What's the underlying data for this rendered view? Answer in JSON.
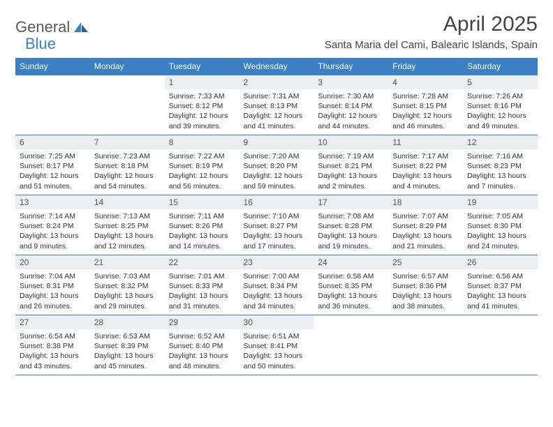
{
  "logo": {
    "part1": "General",
    "part2": "Blue"
  },
  "title": "April 2025",
  "location": "Santa Maria del Cami, Balearic Islands, Spain",
  "colors": {
    "header_bg": "#3b7fc4",
    "header_text": "#ffffff",
    "daynum_bg": "#eceff1",
    "border": "#3b7fc4",
    "body_text": "#333333",
    "logo_gray": "#5a5a5a",
    "logo_blue": "#3b7fc4"
  },
  "dayHeaders": [
    "Sunday",
    "Monday",
    "Tuesday",
    "Wednesday",
    "Thursday",
    "Friday",
    "Saturday"
  ],
  "weeks": [
    [
      null,
      null,
      {
        "n": "1",
        "sr": "7:33 AM",
        "ss": "8:12 PM",
        "dl": "12 hours and 39 minutes."
      },
      {
        "n": "2",
        "sr": "7:31 AM",
        "ss": "8:13 PM",
        "dl": "12 hours and 41 minutes."
      },
      {
        "n": "3",
        "sr": "7:30 AM",
        "ss": "8:14 PM",
        "dl": "12 hours and 44 minutes."
      },
      {
        "n": "4",
        "sr": "7:28 AM",
        "ss": "8:15 PM",
        "dl": "12 hours and 46 minutes."
      },
      {
        "n": "5",
        "sr": "7:26 AM",
        "ss": "8:16 PM",
        "dl": "12 hours and 49 minutes."
      }
    ],
    [
      {
        "n": "6",
        "sr": "7:25 AM",
        "ss": "8:17 PM",
        "dl": "12 hours and 51 minutes."
      },
      {
        "n": "7",
        "sr": "7:23 AM",
        "ss": "8:18 PM",
        "dl": "12 hours and 54 minutes."
      },
      {
        "n": "8",
        "sr": "7:22 AM",
        "ss": "8:19 PM",
        "dl": "12 hours and 56 minutes."
      },
      {
        "n": "9",
        "sr": "7:20 AM",
        "ss": "8:20 PM",
        "dl": "12 hours and 59 minutes."
      },
      {
        "n": "10",
        "sr": "7:19 AM",
        "ss": "8:21 PM",
        "dl": "13 hours and 2 minutes."
      },
      {
        "n": "11",
        "sr": "7:17 AM",
        "ss": "8:22 PM",
        "dl": "13 hours and 4 minutes."
      },
      {
        "n": "12",
        "sr": "7:16 AM",
        "ss": "8:23 PM",
        "dl": "13 hours and 7 minutes."
      }
    ],
    [
      {
        "n": "13",
        "sr": "7:14 AM",
        "ss": "8:24 PM",
        "dl": "13 hours and 9 minutes."
      },
      {
        "n": "14",
        "sr": "7:13 AM",
        "ss": "8:25 PM",
        "dl": "13 hours and 12 minutes."
      },
      {
        "n": "15",
        "sr": "7:11 AM",
        "ss": "8:26 PM",
        "dl": "13 hours and 14 minutes."
      },
      {
        "n": "16",
        "sr": "7:10 AM",
        "ss": "8:27 PM",
        "dl": "13 hours and 17 minutes."
      },
      {
        "n": "17",
        "sr": "7:08 AM",
        "ss": "8:28 PM",
        "dl": "13 hours and 19 minutes."
      },
      {
        "n": "18",
        "sr": "7:07 AM",
        "ss": "8:29 PM",
        "dl": "13 hours and 21 minutes."
      },
      {
        "n": "19",
        "sr": "7:05 AM",
        "ss": "8:30 PM",
        "dl": "13 hours and 24 minutes."
      }
    ],
    [
      {
        "n": "20",
        "sr": "7:04 AM",
        "ss": "8:31 PM",
        "dl": "13 hours and 26 minutes."
      },
      {
        "n": "21",
        "sr": "7:03 AM",
        "ss": "8:32 PM",
        "dl": "13 hours and 29 minutes."
      },
      {
        "n": "22",
        "sr": "7:01 AM",
        "ss": "8:33 PM",
        "dl": "13 hours and 31 minutes."
      },
      {
        "n": "23",
        "sr": "7:00 AM",
        "ss": "8:34 PM",
        "dl": "13 hours and 34 minutes."
      },
      {
        "n": "24",
        "sr": "6:58 AM",
        "ss": "8:35 PM",
        "dl": "13 hours and 36 minutes."
      },
      {
        "n": "25",
        "sr": "6:57 AM",
        "ss": "8:36 PM",
        "dl": "13 hours and 38 minutes."
      },
      {
        "n": "26",
        "sr": "6:56 AM",
        "ss": "8:37 PM",
        "dl": "13 hours and 41 minutes."
      }
    ],
    [
      {
        "n": "27",
        "sr": "6:54 AM",
        "ss": "8:38 PM",
        "dl": "13 hours and 43 minutes."
      },
      {
        "n": "28",
        "sr": "6:53 AM",
        "ss": "8:39 PM",
        "dl": "13 hours and 45 minutes."
      },
      {
        "n": "29",
        "sr": "6:52 AM",
        "ss": "8:40 PM",
        "dl": "13 hours and 48 minutes."
      },
      {
        "n": "30",
        "sr": "6:51 AM",
        "ss": "8:41 PM",
        "dl": "13 hours and 50 minutes."
      },
      null,
      null,
      null
    ]
  ],
  "labels": {
    "sunrise": "Sunrise:",
    "sunset": "Sunset:",
    "daylight": "Daylight:"
  }
}
